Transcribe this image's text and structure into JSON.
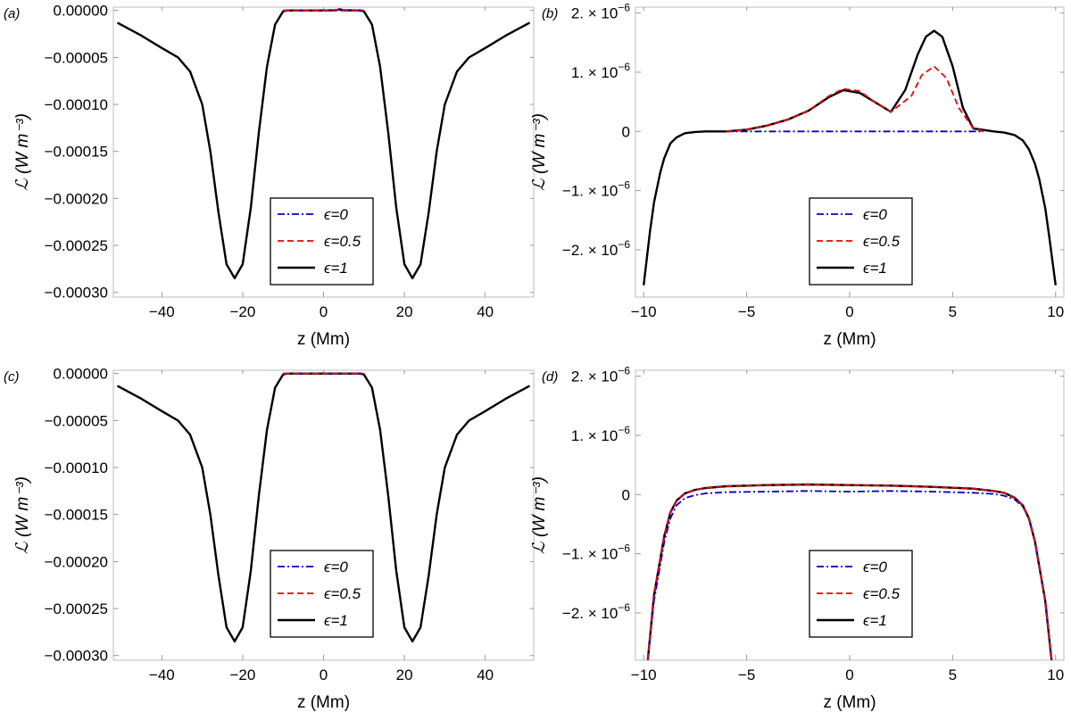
{
  "chart_data": [
    {
      "panel_label": "(a)",
      "type": "line",
      "xlabel": "z (Mm)",
      "ylabel": "ℒ (W m⁻³)",
      "xlim": [
        -52,
        52
      ],
      "ylim": [
        -0.000305,
        3.5e-06
      ],
      "xticks": [
        -40,
        -20,
        0,
        20,
        40
      ],
      "xtick_labels": [
        "−40",
        "−20",
        "0",
        "20",
        "40"
      ],
      "yticks": [
        0,
        -5e-05,
        -0.0001,
        -0.00015,
        -0.0002,
        -0.00025,
        -0.0003
      ],
      "ytick_labels": [
        "0.00000",
        "−0.00005",
        "−0.00010",
        "−0.00015",
        "−0.00020",
        "−0.00025",
        "−0.00030"
      ],
      "legend_position": "bottom-center",
      "series": [
        {
          "name": "ϵ=0",
          "style": "dashdot",
          "color": "#0000cc",
          "x": [
            -10,
            -5,
            0,
            3,
            5,
            10
          ],
          "y": [
            0,
            0,
            0,
            0,
            0,
            0
          ]
        },
        {
          "name": "ϵ=0.5",
          "style": "dashed",
          "color": "#ee0000",
          "x": [
            -10,
            -5,
            0,
            2,
            4,
            6,
            10
          ],
          "y": [
            0,
            0,
            0,
            2e-07,
            1.1e-06,
            2e-07,
            0
          ]
        },
        {
          "name": "ϵ=1",
          "style": "solid",
          "color": "#000000",
          "x": [
            -51,
            -45,
            -40,
            -36,
            -33,
            -30,
            -28,
            -26,
            -24,
            -22,
            -20,
            -18,
            -16,
            -14,
            -12,
            -10,
            -9,
            -5,
            0,
            3,
            4,
            5,
            9,
            10,
            12,
            14,
            16,
            18,
            20,
            22,
            24,
            26,
            28,
            30,
            33,
            36,
            40,
            45,
            51
          ],
          "y": [
            -1.3e-05,
            -2.7e-05,
            -4e-05,
            -5e-05,
            -6.5e-05,
            -0.0001,
            -0.00015,
            -0.000215,
            -0.00027,
            -0.000285,
            -0.00027,
            -0.00021,
            -0.00013,
            -6e-05,
            -1.5e-05,
            -1e-06,
            0,
            0,
            0,
            2e-07,
            1.2e-06,
            2e-07,
            0,
            -1e-06,
            -1.5e-05,
            -6e-05,
            -0.00013,
            -0.00021,
            -0.00027,
            -0.000285,
            -0.00027,
            -0.000215,
            -0.00015,
            -0.0001,
            -6.5e-05,
            -5e-05,
            -4e-05,
            -2.7e-05,
            -1.3e-05
          ]
        }
      ]
    },
    {
      "panel_label": "(b)",
      "type": "line",
      "xlabel": "z (Mm)",
      "ylabel": "ℒ (W m⁻³)",
      "xlim": [
        -10.4,
        10.4
      ],
      "ylim": [
        -2.8e-06,
        2.1e-06
      ],
      "xticks": [
        -10,
        -5,
        0,
        5,
        10
      ],
      "xtick_labels": [
        "−10",
        "−5",
        "0",
        "5",
        "10"
      ],
      "yticks": [
        2e-06,
        1e-06,
        0,
        -1e-06,
        -2e-06
      ],
      "ytick_labels": [
        "2. × 10",
        "1. × 10",
        "0",
        "−1. × 10",
        "−2. × 10"
      ],
      "ytick_exponents": [
        "−6",
        "−6",
        "",
        "−6",
        "−6"
      ],
      "legend_position": "bottom-center",
      "series": [
        {
          "name": "ϵ=0",
          "style": "dashdot",
          "color": "#0000cc",
          "x": [
            -6,
            -3,
            0,
            3,
            6.5
          ],
          "y": [
            0,
            0,
            0,
            0,
            0
          ]
        },
        {
          "name": "ϵ=0.5",
          "style": "dashed",
          "color": "#ee0000",
          "x": [
            -6,
            -5,
            -4,
            -3,
            -2,
            -1,
            -0.3,
            0.5,
            1.2,
            2,
            3,
            3.5,
            4.1,
            4.7,
            5.3,
            6,
            6.5
          ],
          "y": [
            0,
            3e-08,
            1e-07,
            2e-07,
            3.5e-07,
            6e-07,
            7.2e-07,
            6.8e-07,
            5e-07,
            3.3e-07,
            6e-07,
            9.5e-07,
            1.1e-06,
            9e-07,
            4e-07,
            5e-08,
            0
          ]
        },
        {
          "name": "ϵ=1",
          "style": "solid",
          "color": "#000000",
          "x": [
            -10,
            -9.7,
            -9.5,
            -9.2,
            -9,
            -8.7,
            -8.4,
            -8,
            -7.5,
            -7,
            -6,
            -5,
            -4,
            -3,
            -2,
            -1,
            -0.3,
            0.5,
            1.2,
            2,
            2.7,
            3.3,
            3.7,
            4.1,
            4.5,
            5,
            5.5,
            6,
            7,
            7.5,
            8,
            8.4,
            8.7,
            9,
            9.2,
            9.5,
            9.7,
            10
          ],
          "y": [
            -2.6e-06,
            -1.7e-06,
            -1.2e-06,
            -7e-07,
            -4.5e-07,
            -2e-07,
            -1e-07,
            -3e-08,
            -1e-08,
            0,
            0,
            3e-08,
            1e-07,
            2e-07,
            3.5e-07,
            5.8e-07,
            7e-07,
            6.5e-07,
            5e-07,
            3.3e-07,
            7e-07,
            1.3e-06,
            1.6e-06,
            1.7e-06,
            1.6e-06,
            1.1e-06,
            4e-07,
            5e-08,
            0,
            -2e-08,
            -6e-08,
            -1.5e-07,
            -3e-07,
            -5.5e-07,
            -8e-07,
            -1.3e-06,
            -1.8e-06,
            -2.6e-06
          ]
        }
      ]
    },
    {
      "panel_label": "(c)",
      "type": "line",
      "xlabel": "z (Mm)",
      "ylabel": "ℒ (W m⁻³)",
      "xlim": [
        -52,
        52
      ],
      "ylim": [
        -0.000305,
        3.5e-06
      ],
      "xticks": [
        -40,
        -20,
        0,
        20,
        40
      ],
      "xtick_labels": [
        "−40",
        "−20",
        "0",
        "20",
        "40"
      ],
      "yticks": [
        0,
        -5e-05,
        -0.0001,
        -0.00015,
        -0.0002,
        -0.00025,
        -0.0003
      ],
      "ytick_labels": [
        "0.00000",
        "−0.00005",
        "−0.00010",
        "−0.00015",
        "−0.00020",
        "−0.00025",
        "−0.00030"
      ],
      "legend_position": "bottom-center",
      "series": [
        {
          "name": "ϵ=0",
          "style": "dashdot",
          "color": "#0000cc",
          "x": [
            -10,
            0,
            10
          ],
          "y": [
            0,
            0,
            0
          ]
        },
        {
          "name": "ϵ=0.5",
          "style": "dashed",
          "color": "#ee0000",
          "x": [
            -10,
            0,
            10
          ],
          "y": [
            0,
            0,
            0
          ]
        },
        {
          "name": "ϵ=1",
          "style": "solid",
          "color": "#000000",
          "x": [
            -51,
            -45,
            -40,
            -36,
            -33,
            -30,
            -28,
            -26,
            -24,
            -22,
            -20,
            -18,
            -16,
            -14,
            -12,
            -10,
            -9,
            0,
            9,
            10,
            12,
            14,
            16,
            18,
            20,
            22,
            24,
            26,
            28,
            30,
            33,
            36,
            40,
            45,
            51
          ],
          "y": [
            -1.3e-05,
            -2.7e-05,
            -4e-05,
            -5e-05,
            -6.5e-05,
            -0.0001,
            -0.00015,
            -0.000215,
            -0.00027,
            -0.000285,
            -0.00027,
            -0.00021,
            -0.00013,
            -6e-05,
            -1.5e-05,
            -1e-06,
            0,
            0,
            0,
            -1e-06,
            -1.5e-05,
            -6e-05,
            -0.00013,
            -0.00021,
            -0.00027,
            -0.000285,
            -0.00027,
            -0.000215,
            -0.00015,
            -0.0001,
            -6.5e-05,
            -5e-05,
            -4e-05,
            -2.7e-05,
            -1.3e-05
          ]
        }
      ]
    },
    {
      "panel_label": "(d)",
      "type": "line",
      "xlabel": "z (Mm)",
      "ylabel": "ℒ (W m⁻³)",
      "xlim": [
        -10.4,
        10.4
      ],
      "ylim": [
        -2.8e-06,
        2.1e-06
      ],
      "xticks": [
        -10,
        -5,
        0,
        5,
        10
      ],
      "xtick_labels": [
        "−10",
        "−5",
        "0",
        "5",
        "10"
      ],
      "yticks": [
        2e-06,
        1e-06,
        0,
        -1e-06,
        -2e-06
      ],
      "ytick_labels": [
        "2. × 10",
        "1. × 10",
        "0",
        "−1. × 10",
        "−2. × 10"
      ],
      "ytick_exponents": [
        "−6",
        "−6",
        "",
        "−6",
        "−6"
      ],
      "legend_position": "bottom-center",
      "series": [
        {
          "name": "ϵ=0",
          "style": "dashdot",
          "color": "#0000cc",
          "x": [
            -9.8,
            -9.5,
            -9.2,
            -9,
            -8.7,
            -8.4,
            -8,
            -7.5,
            -7,
            -6,
            -4,
            -2,
            0,
            2,
            4,
            6,
            7,
            7.5,
            8,
            8.4,
            8.7,
            9,
            9.2,
            9.5,
            9.8
          ],
          "y": [
            -2.8e-06,
            -1.8e-06,
            -1.2e-06,
            -8e-07,
            -4e-07,
            -1.8e-07,
            -6e-08,
            -1e-08,
            2e-08,
            4e-08,
            5e-08,
            6e-08,
            5e-08,
            6e-08,
            5e-08,
            3e-08,
            1e-08,
            -2e-08,
            -8e-08,
            -2e-07,
            -4e-07,
            -8e-07,
            -1.2e-06,
            -1.8e-06,
            -2.8e-06
          ]
        },
        {
          "name": "ϵ=0.5",
          "style": "dashed",
          "color": "#ee0000",
          "x": [
            -9.8,
            -9.5,
            -9.2,
            -9,
            -8.7,
            -8.4,
            -8,
            -7.5,
            -7,
            -6,
            -4,
            -2,
            0,
            2,
            4,
            6,
            7,
            7.5,
            8,
            8.4,
            8.7,
            9,
            9.2,
            9.5,
            9.8
          ],
          "y": [
            -2.8e-06,
            -1.7e-06,
            -1.1e-06,
            -7e-07,
            -3e-07,
            -1e-07,
            2e-08,
            8e-08,
            1.1e-07,
            1.4e-07,
            1.6e-07,
            1.7e-07,
            1.6e-07,
            1.5e-07,
            1.3e-07,
            1e-07,
            6e-08,
            3e-08,
            -5e-08,
            -1.8e-07,
            -4e-07,
            -8e-07,
            -1.2e-06,
            -1.8e-06,
            -2.8e-06
          ]
        },
        {
          "name": "ϵ=1",
          "style": "solid",
          "color": "#000000",
          "x": [
            -9.8,
            -9.5,
            -9.2,
            -9,
            -8.7,
            -8.4,
            -8,
            -7.5,
            -7,
            -6,
            -4,
            -2,
            0,
            2,
            4,
            6,
            7,
            7.5,
            8,
            8.4,
            8.7,
            9,
            9.2,
            9.5,
            9.8
          ],
          "y": [
            -2.8e-06,
            -1.7e-06,
            -1.1e-06,
            -7e-07,
            -3e-07,
            -1e-07,
            2e-08,
            8e-08,
            1.1e-07,
            1.4e-07,
            1.6e-07,
            1.7e-07,
            1.6e-07,
            1.5e-07,
            1.3e-07,
            1e-07,
            6e-08,
            3e-08,
            -5e-08,
            -1.8e-07,
            -4e-07,
            -8e-07,
            -1.2e-06,
            -1.8e-06,
            -2.8e-06
          ]
        }
      ]
    }
  ]
}
